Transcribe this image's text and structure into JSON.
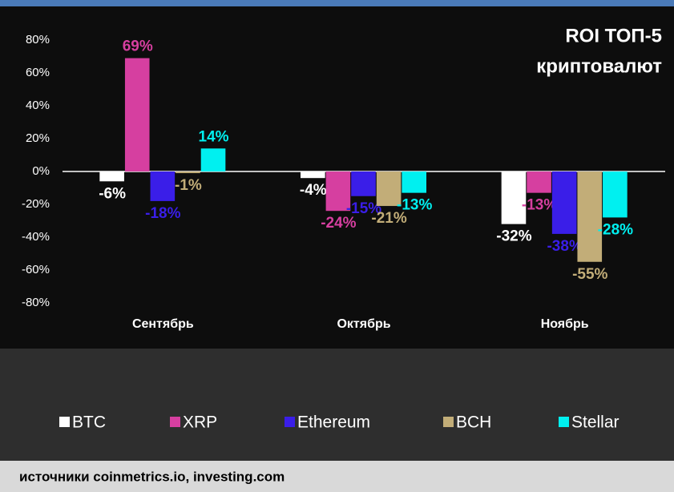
{
  "chart_data": {
    "type": "bar",
    "title": [
      "ROI ТОП-5",
      "криптовалют"
    ],
    "categories": [
      "Сентябрь",
      "Октябрь",
      "Ноябрь"
    ],
    "series": [
      {
        "name": "BTC",
        "color": "#ffffff",
        "values": [
          -6,
          -4,
          -32
        ],
        "value_labels": [
          "-6%",
          "-4%",
          "-32%"
        ]
      },
      {
        "name": "XRP",
        "color": "#d63fa0",
        "values": [
          69,
          -24,
          -13
        ],
        "value_labels": [
          "69%",
          "-24%",
          "-13%"
        ]
      },
      {
        "name": "Ethereum",
        "color": "#3a1ee8",
        "values": [
          -18,
          -15,
          -38
        ],
        "value_labels": [
          "-18%",
          "-15%",
          "-38%"
        ]
      },
      {
        "name": "BCH",
        "color": "#c2ad78",
        "values": [
          -1,
          -21,
          -55
        ],
        "value_labels": [
          "-1%",
          "-21%",
          "-55%"
        ]
      },
      {
        "name": "Stellar",
        "color": "#00f0f0",
        "values": [
          14,
          -13,
          -28
        ],
        "value_labels": [
          "14%",
          "-13%",
          "-28%"
        ]
      }
    ],
    "ylim": [
      -80,
      80
    ],
    "yticks": [
      {
        "value": -80,
        "label": "-80%"
      },
      {
        "value": -60,
        "label": "-60%"
      },
      {
        "value": -40,
        "label": "-40%"
      },
      {
        "value": -20,
        "label": "-20%"
      },
      {
        "value": 0,
        "label": "0%"
      },
      {
        "value": 20,
        "label": "20%"
      },
      {
        "value": 40,
        "label": "40%"
      },
      {
        "value": 60,
        "label": "60%"
      },
      {
        "value": 80,
        "label": "80%"
      }
    ],
    "legend": "bottom",
    "source": "источники coinmetrics.io, investing.com"
  }
}
